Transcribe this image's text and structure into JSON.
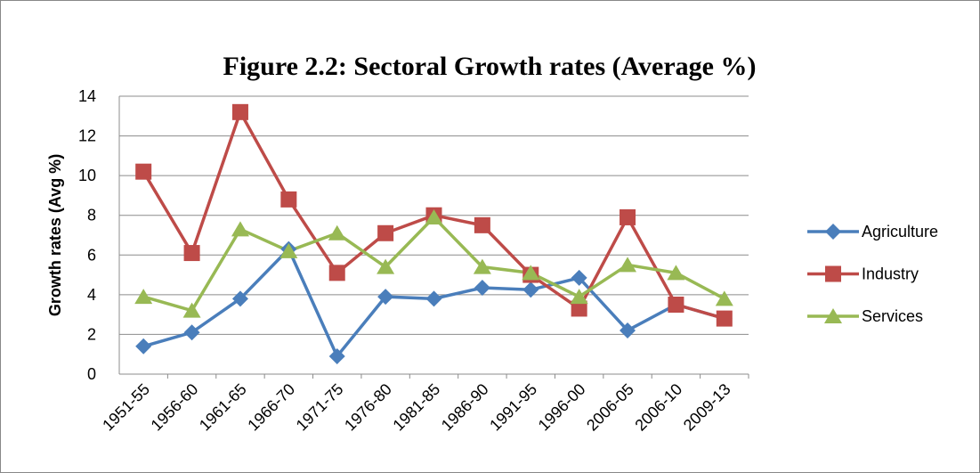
{
  "chart_data": {
    "type": "line",
    "title": "Figure 2.2: Sectoral Growth rates (Average %)",
    "y_label": "Growth rates (Avg %)",
    "categories": [
      "1951-55",
      "1956-60",
      "1961-65",
      "1966-70",
      "1971-75",
      "1976-80",
      "1981-85",
      "1986-90",
      "1991-95",
      "1996-00",
      "2006-05",
      "2006-10",
      "2009-13"
    ],
    "series": [
      {
        "name": "Agriculture",
        "color": "#4a7ebb",
        "marker": "diamond",
        "values": [
          1.4,
          2.1,
          3.8,
          6.3,
          0.9,
          3.9,
          3.8,
          4.35,
          4.25,
          4.85,
          2.2,
          3.5,
          2.8
        ]
      },
      {
        "name": "Industry",
        "color": "#be4b48",
        "marker": "square",
        "values": [
          10.2,
          6.1,
          13.2,
          8.8,
          5.1,
          7.1,
          8.0,
          7.5,
          5.0,
          3.3,
          7.9,
          3.5,
          2.8
        ]
      },
      {
        "name": "Services",
        "color": "#98b954",
        "marker": "triangle",
        "values": [
          3.9,
          3.2,
          7.3,
          6.2,
          7.1,
          5.4,
          7.9,
          5.4,
          5.1,
          3.9,
          5.5,
          5.1,
          3.8
        ]
      }
    ],
    "ylim": [
      0,
      14
    ],
    "yticks": [
      0,
      2,
      4,
      6,
      8,
      10,
      12,
      14
    ],
    "grid": true,
    "legend": "right"
  }
}
